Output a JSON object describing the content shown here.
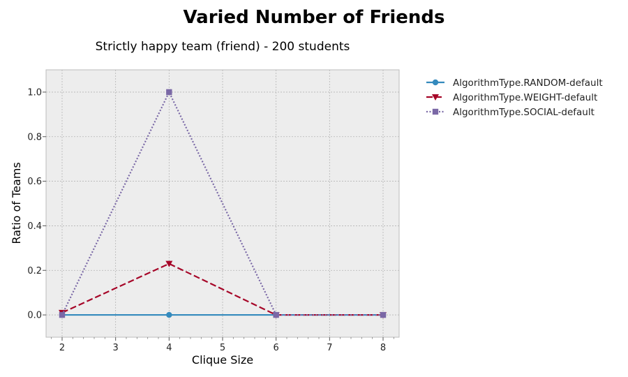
{
  "figure": {
    "suptitle": "Varied Number of Friends"
  },
  "chart_data": {
    "type": "line",
    "title": "Strictly happy team (friend) - 200 students",
    "xlabel": "Clique Size",
    "ylabel": "Ratio of Teams",
    "xlim": [
      1.7,
      8.3
    ],
    "ylim": [
      -0.1,
      1.1
    ],
    "x_ticks": [
      2,
      3,
      4,
      5,
      6,
      7,
      8
    ],
    "y_ticks": [
      0.0,
      0.2,
      0.4,
      0.6,
      0.8,
      1.0
    ],
    "x_tick_labels": [
      "2",
      "3",
      "4",
      "5",
      "6",
      "7",
      "8"
    ],
    "y_tick_labels": [
      "0.0",
      "0.2",
      "0.4",
      "0.6",
      "0.8",
      "1.0"
    ],
    "x": [
      2,
      4,
      6,
      8
    ],
    "grid": true,
    "legend_position": "outside-right",
    "background": "#ededed",
    "series": [
      {
        "name": "AlgorithmType.RANDOM-default",
        "values": [
          0.0,
          0.0,
          0.0,
          0.0
        ],
        "color": "#348abd",
        "linestyle": "solid",
        "marker": "circle"
      },
      {
        "name": "AlgorithmType.WEIGHT-default",
        "values": [
          0.01,
          0.23,
          0.0,
          0.0
        ],
        "color": "#a60628",
        "linestyle": "dashed",
        "marker": "triangle-down"
      },
      {
        "name": "AlgorithmType.SOCIAL-default",
        "values": [
          0.0,
          1.0,
          0.0,
          0.0
        ],
        "color": "#7a68a6",
        "linestyle": "dotted",
        "marker": "square"
      }
    ]
  }
}
